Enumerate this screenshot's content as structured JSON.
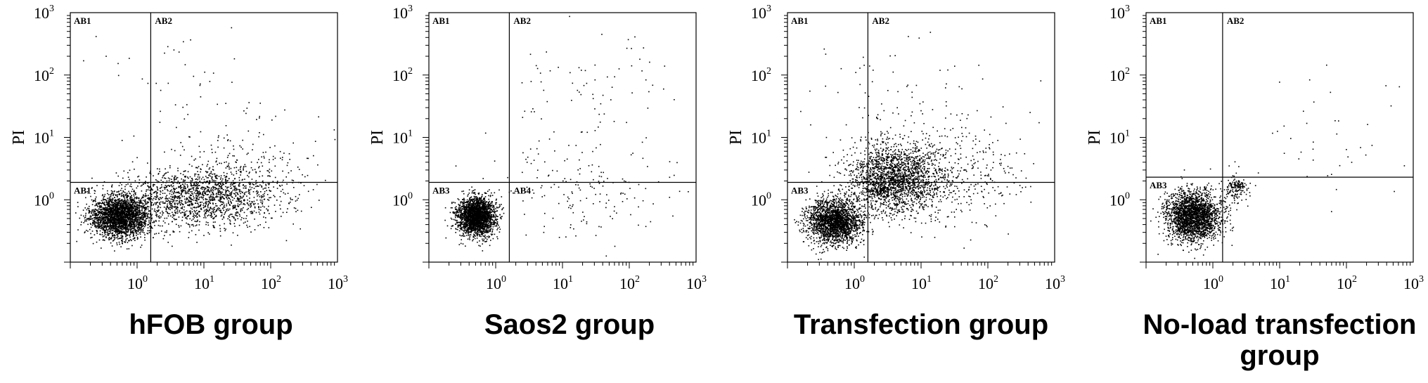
{
  "chart_data": [
    {
      "type": "scatter",
      "title": "hFOB group",
      "ylabel": "PI",
      "xlabel": "",
      "x_scale": "log",
      "y_scale": "log",
      "xlim": [
        0.1,
        1000
      ],
      "ylim": [
        0.1,
        1000
      ],
      "x_ticks": [
        "10",
        "10",
        "10",
        "10"
      ],
      "x_tick_exps": [
        "0",
        "1",
        "2",
        "3"
      ],
      "y_ticks": [
        "10",
        "10",
        "10",
        "10"
      ],
      "y_tick_exps": [
        "0",
        "1",
        "2",
        "3"
      ],
      "gate": {
        "x": 1.6,
        "y": 1.9
      },
      "quadrant_labels": {
        "upper_left": "AB1",
        "upper_right": "AB2",
        "lower_left": "AB1",
        "lower_right": ""
      },
      "populations": [
        {
          "cx": 0.55,
          "cy": 0.55,
          "sx": 0.22,
          "sy": 0.17,
          "n": 2600
        },
        {
          "cx": 8.0,
          "cy": 1.1,
          "sx": 0.55,
          "sy": 0.22,
          "n": 1500
        },
        {
          "cx": 40.0,
          "cy": 2.5,
          "sx": 0.55,
          "sy": 0.35,
          "n": 300
        },
        {
          "cx": 6.0,
          "cy": 40.0,
          "sx": 0.8,
          "sy": 0.6,
          "n": 60
        }
      ]
    },
    {
      "type": "scatter",
      "title": "Saos2 group",
      "ylabel": "PI",
      "xlabel": "",
      "x_scale": "log",
      "y_scale": "log",
      "xlim": [
        0.1,
        1000
      ],
      "ylim": [
        0.1,
        1000
      ],
      "x_ticks": [
        "10",
        "10",
        "10",
        "10"
      ],
      "x_tick_exps": [
        "0",
        "1",
        "2",
        "3"
      ],
      "y_ticks": [
        "10",
        "10",
        "10",
        "10"
      ],
      "y_tick_exps": [
        "0",
        "1",
        "2",
        "3"
      ],
      "gate": {
        "x": 1.6,
        "y": 1.9
      },
      "quadrant_labels": {
        "upper_left": "AB1",
        "upper_right": "AB2",
        "lower_left": "AB3",
        "lower_right": "AB4"
      },
      "populations": [
        {
          "cx": 0.5,
          "cy": 0.55,
          "sx": 0.14,
          "sy": 0.15,
          "n": 2400
        },
        {
          "cx": 20.0,
          "cy": 1.2,
          "sx": 0.6,
          "sy": 0.35,
          "n": 150
        },
        {
          "cx": 20.0,
          "cy": 40.0,
          "sx": 0.7,
          "sy": 0.6,
          "n": 90
        }
      ]
    },
    {
      "type": "scatter",
      "title": "Transfection group",
      "ylabel": "PI",
      "xlabel": "",
      "x_scale": "log",
      "y_scale": "log",
      "xlim": [
        0.1,
        1000
      ],
      "ylim": [
        0.1,
        1000
      ],
      "x_ticks": [
        "10",
        "10",
        "10",
        "10"
      ],
      "x_tick_exps": [
        "0",
        "1",
        "2",
        "3"
      ],
      "y_ticks": [
        "10",
        "10",
        "10",
        "10"
      ],
      "y_tick_exps": [
        "0",
        "1",
        "2",
        "3"
      ],
      "gate": {
        "x": 1.6,
        "y": 1.9
      },
      "quadrant_labels": {
        "upper_left": "AB1",
        "upper_right": "AB2",
        "lower_left": "AB3",
        "lower_right": "AB4"
      },
      "populations": [
        {
          "cx": 0.5,
          "cy": 0.45,
          "sx": 0.2,
          "sy": 0.18,
          "n": 2200
        },
        {
          "cx": 4.0,
          "cy": 2.2,
          "sx": 0.35,
          "sy": 0.28,
          "n": 2000
        },
        {
          "cx": 30.0,
          "cy": 2.5,
          "sx": 0.55,
          "sy": 0.45,
          "n": 400
        },
        {
          "cx": 5.0,
          "cy": 30.0,
          "sx": 0.7,
          "sy": 0.6,
          "n": 90
        }
      ]
    },
    {
      "type": "scatter",
      "title": "No-load transfection group",
      "ylabel": "PI",
      "xlabel": "",
      "x_scale": "log",
      "y_scale": "log",
      "xlim": [
        0.1,
        1000
      ],
      "ylim": [
        0.1,
        1000
      ],
      "x_ticks": [
        "10",
        "10",
        "10",
        "10"
      ],
      "x_tick_exps": [
        "0",
        "1",
        "2",
        "3"
      ],
      "y_ticks": [
        "10",
        "10",
        "10",
        "10"
      ],
      "y_tick_exps": [
        "0",
        "1",
        "2",
        "3"
      ],
      "gate": {
        "x": 1.4,
        "y": 2.3
      },
      "quadrant_labels": {
        "upper_left": "AB1",
        "upper_right": "AB2",
        "lower_left": "AB3",
        "lower_right": "AB4"
      },
      "populations": [
        {
          "cx": 0.5,
          "cy": 0.55,
          "sx": 0.2,
          "sy": 0.2,
          "n": 2400
        },
        {
          "cx": 2.2,
          "cy": 1.5,
          "sx": 0.1,
          "sy": 0.12,
          "n": 120
        },
        {
          "cx": 30.0,
          "cy": 10.0,
          "sx": 0.7,
          "sy": 0.7,
          "n": 40
        }
      ]
    }
  ],
  "captions": [
    {
      "line1": "hFOB group",
      "line2": ""
    },
    {
      "line1": "Saos2 group",
      "line2": ""
    },
    {
      "line1": "Transfection group",
      "line2": ""
    },
    {
      "line1": "No-load transfection",
      "line2": "group"
    }
  ],
  "colors": {
    "dots": "#000000",
    "axes": "#000000",
    "background": "#ffffff"
  }
}
